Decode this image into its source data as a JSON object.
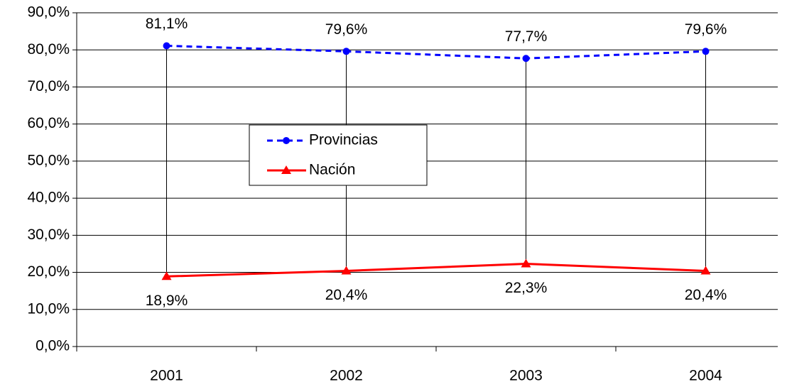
{
  "chart_data": {
    "type": "line",
    "categories": [
      "2001",
      "2002",
      "2003",
      "2004"
    ],
    "series": [
      {
        "name": "Provincias",
        "color": "#0000ff",
        "dash": true,
        "marker": "circle",
        "values": [
          81.1,
          79.6,
          77.7,
          79.6
        ],
        "value_labels": [
          "81,1%",
          "79,6%",
          "77,7%",
          "79,6%"
        ]
      },
      {
        "name": "Nación",
        "color": "#ff0000",
        "dash": false,
        "marker": "triangle",
        "values": [
          18.9,
          20.4,
          22.3,
          20.4
        ],
        "value_labels": [
          "18,9%",
          "20,4%",
          "22,3%",
          "20,4%"
        ]
      }
    ],
    "ylim": [
      0,
      90
    ],
    "yticks": [
      {
        "value": 0,
        "label": "0,0%"
      },
      {
        "value": 10,
        "label": "10,0%"
      },
      {
        "value": 20,
        "label": "20,0%"
      },
      {
        "value": 30,
        "label": "30,0%"
      },
      {
        "value": 40,
        "label": "40,0%"
      },
      {
        "value": 50,
        "label": "50,0%"
      },
      {
        "value": 60,
        "label": "60,0%"
      },
      {
        "value": 70,
        "label": "70,0%"
      },
      {
        "value": 80,
        "label": "80,0%"
      },
      {
        "value": 90,
        "label": "90,0%"
      }
    ],
    "grid": true,
    "hilo_lines": true,
    "legend": "center"
  }
}
